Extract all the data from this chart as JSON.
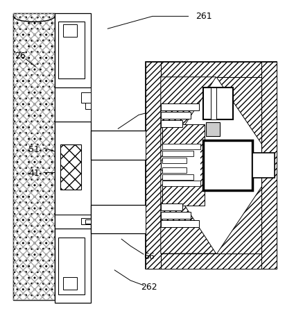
{
  "bg_color": "#ffffff",
  "line_color": "#000000",
  "figsize": [
    4.11,
    4.55
  ],
  "dpi": 100,
  "label_fontsize": 9
}
